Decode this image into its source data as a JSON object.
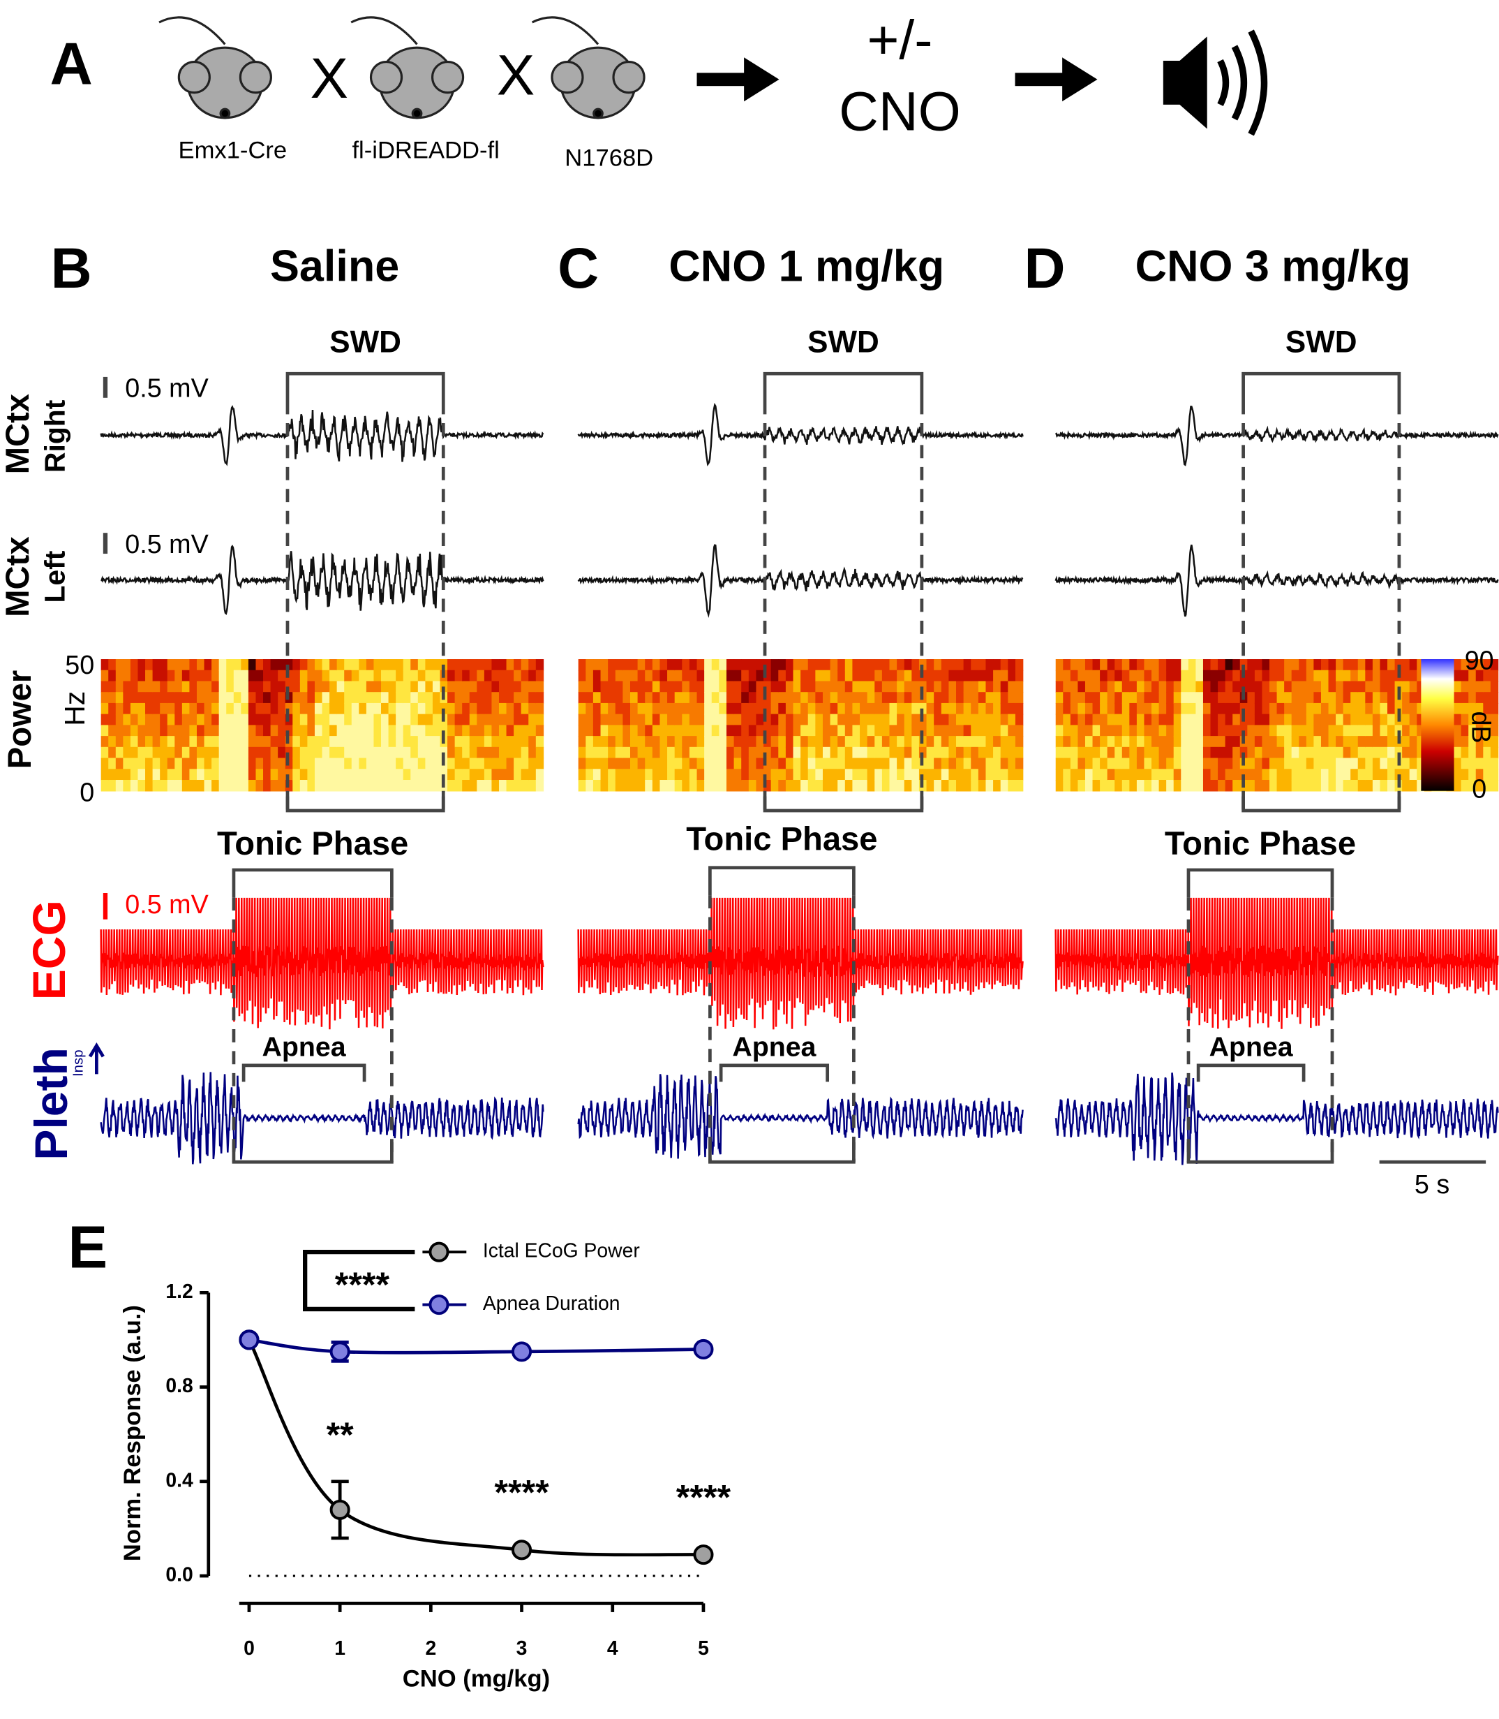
{
  "panel_a": {
    "label": "A",
    "strains": [
      "Emx1-Cre",
      "fl-iDREADD-fl",
      "N1768D"
    ],
    "cross": "X",
    "treatment": [
      "+/-",
      "CNO"
    ]
  },
  "columns": [
    {
      "label": "B",
      "title": "Saline"
    },
    {
      "label": "C",
      "title": "CNO 1 mg/kg"
    },
    {
      "label": "D",
      "title": "CNO 3 mg/kg"
    }
  ],
  "box_labels": {
    "swd": "SWD",
    "tonic": "Tonic Phase",
    "apnea": "Apnea"
  },
  "row_labels": {
    "mctx_right": [
      "MCtx",
      "Right"
    ],
    "mctx_left": [
      "MCtx",
      "Left"
    ],
    "power": [
      "Power",
      "Hz"
    ],
    "ecg": "ECG",
    "pleth": "Pleth",
    "insp": "Insp"
  },
  "scale_bars": {
    "voltage": "0.5 mV",
    "time": "5 s"
  },
  "spectrogram": {
    "freq_ticks": [
      "50",
      "0"
    ],
    "colorbar_ticks": [
      "90",
      "0"
    ],
    "colorbar_unit": "dB"
  },
  "chart_data": {
    "type": "line",
    "label": "E",
    "x": [
      0,
      1,
      3,
      5
    ],
    "xlabel": "CNO (mg/kg)",
    "ylabel": "Norm. Response (a.u.)",
    "xlim": [
      0,
      5
    ],
    "ylim": [
      0,
      1.2
    ],
    "xticks": [
      0,
      1,
      2,
      3,
      4,
      5
    ],
    "yticks": [
      {
        "value": 0,
        "label": "0.0"
      },
      {
        "value": 0.4,
        "label": "0.4"
      },
      {
        "value": 0.8,
        "label": "0.8"
      },
      {
        "value": 1.2,
        "label": "1.2"
      }
    ],
    "reference_line": 0,
    "comparison_label": "****",
    "series": [
      {
        "name": "Ictal ECoG Power",
        "color": "#a0a0a0",
        "line_color": "#000000",
        "values": [
          1,
          0.28,
          0.11,
          0.09
        ],
        "errors": [
          null,
          0.12,
          null,
          null
        ],
        "annotations": [
          null,
          "**",
          "****",
          "****"
        ]
      },
      {
        "name": "Apnea Duration",
        "color": "#8080e0",
        "line_color": "#00007a",
        "values": [
          1,
          0.95,
          0.95,
          0.96
        ],
        "errors": [
          null,
          0.04,
          null,
          null
        ]
      }
    ]
  }
}
